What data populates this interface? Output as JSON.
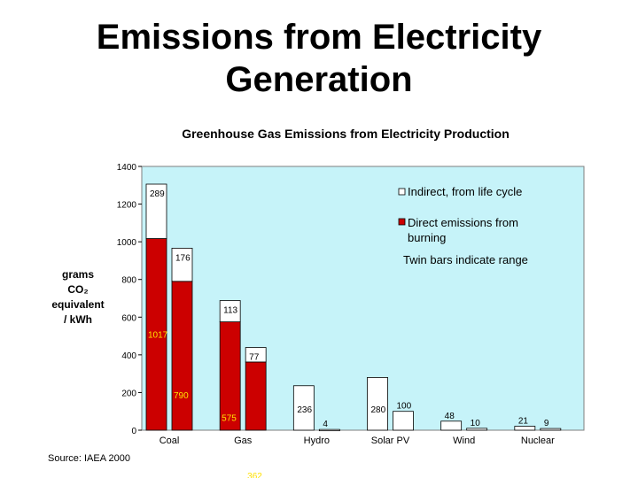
{
  "slide": {
    "title_line1": "Emissions from Electricity",
    "title_line2": "Generation",
    "source": "Source: IAEA 2000"
  },
  "chart_data": {
    "type": "bar",
    "title": "Greenhouse Gas Emissions from Electricity Production",
    "ylabel_lines": [
      "grams",
      "CO₂",
      "equivalent",
      "/ kWh"
    ],
    "ylim": [
      0,
      1400
    ],
    "yticks": [
      0,
      200,
      400,
      600,
      800,
      1000,
      1200,
      1400
    ],
    "categories": [
      "Coal",
      "Gas",
      "Hydro",
      "Solar PV",
      "Wind",
      "Nuclear"
    ],
    "bars": [
      {
        "category": "Coal",
        "direct": 1017,
        "indirect": 289
      },
      {
        "category": "Coal",
        "direct": 790,
        "indirect": 176
      },
      {
        "category": "Gas",
        "direct": 575,
        "indirect": 113
      },
      {
        "category": "Gas",
        "direct": 362,
        "indirect": 77
      },
      {
        "category": "Hydro",
        "direct": 0,
        "indirect": 236
      },
      {
        "category": "Hydro",
        "direct": 0,
        "indirect": 4
      },
      {
        "category": "Solar PV",
        "direct": 0,
        "indirect": 280
      },
      {
        "category": "Solar PV",
        "direct": 0,
        "indirect": 100
      },
      {
        "category": "Wind",
        "direct": 0,
        "indirect": 48
      },
      {
        "category": "Wind",
        "direct": 0,
        "indirect": 10
      },
      {
        "category": "Nuclear",
        "direct": 0,
        "indirect": 21
      },
      {
        "category": "Nuclear",
        "direct": 0,
        "indirect": 9
      }
    ],
    "legend": {
      "indirect": "Indirect, from life cycle",
      "direct_line1": "Direct emissions from",
      "direct_line2": "burning",
      "note": "Twin bars indicate range",
      "placement": "top-right"
    },
    "colors": {
      "plot_bg": "#c6f3f9",
      "direct": "#cc0000",
      "indirect": "#ffffff",
      "direct_label": "#ffe000"
    }
  }
}
